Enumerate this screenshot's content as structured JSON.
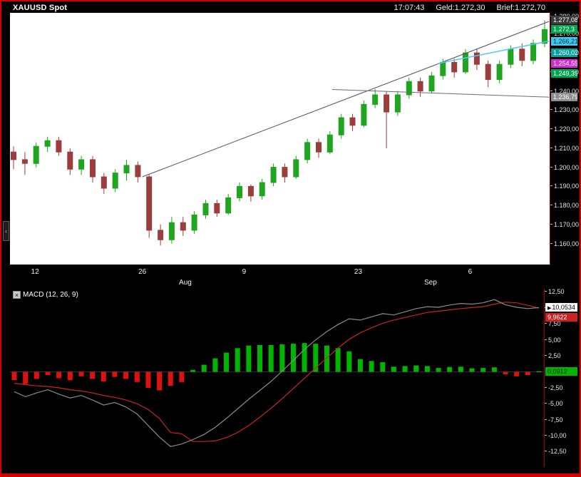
{
  "titlebar": {
    "symbol": "XAUUSD Spot",
    "time": "17:07:43",
    "bid": "Geld:1.272,30",
    "ask": "Brief:1.272,70"
  },
  "macd_panel": {
    "title": "MACD (12, 26, 9)",
    "close_label": "×"
  },
  "chart_data": [
    {
      "type": "candlestick",
      "symbol": "XAUUSD Spot",
      "y_range": [
        1149,
        1281
      ],
      "y_ticks": [
        {
          "v": 1280,
          "label": "1.280,00"
        },
        {
          "v": 1270,
          "label": "1.270,00"
        },
        {
          "v": 1260,
          "label": "1.260,00"
        },
        {
          "v": 1250,
          "label": "1.250,00"
        },
        {
          "v": 1240,
          "label": "1.240,00"
        },
        {
          "v": 1230,
          "label": "1.230,00"
        },
        {
          "v": 1220,
          "label": "1.220,00"
        },
        {
          "v": 1210,
          "label": "1.210,00"
        },
        {
          "v": 1200,
          "label": "1.200,00"
        },
        {
          "v": 1190,
          "label": "1.190,00"
        },
        {
          "v": 1180,
          "label": "1.180,00"
        },
        {
          "v": 1170,
          "label": "1.170,00"
        },
        {
          "v": 1160,
          "label": "1.160,00"
        }
      ],
      "x_ticks": [
        {
          "i": 1.9,
          "label": "12",
          "row": 0
        },
        {
          "i": 11.4,
          "label": "26",
          "row": 0
        },
        {
          "i": 15.2,
          "label": "Aug",
          "row": 1
        },
        {
          "i": 20.4,
          "label": "9",
          "row": 0
        },
        {
          "i": 30.5,
          "label": "23",
          "row": 0
        },
        {
          "i": 36.9,
          "label": "Sep",
          "row": 1
        },
        {
          "i": 40.4,
          "label": "6",
          "row": 0
        }
      ],
      "ohlc": [
        [
          1208,
          1211,
          1199,
          1204
        ],
        [
          1204,
          1208,
          1196,
          1202
        ],
        [
          1202,
          1213,
          1200,
          1211
        ],
        [
          1211,
          1216,
          1208,
          1214
        ],
        [
          1214,
          1216,
          1206,
          1208
        ],
        [
          1208,
          1210,
          1196,
          1199
        ],
        [
          1199,
          1206,
          1196,
          1204
        ],
        [
          1204,
          1206,
          1192,
          1195
        ],
        [
          1195,
          1197,
          1186,
          1189
        ],
        [
          1189,
          1199,
          1187,
          1197
        ],
        [
          1197,
          1204,
          1193,
          1201
        ],
        [
          1201,
          1203,
          1192,
          1195
        ],
        [
          1195,
          1196,
          1163,
          1167
        ],
        [
          1167,
          1170,
          1159,
          1162
        ],
        [
          1162,
          1174,
          1160,
          1171
        ],
        [
          1171,
          1174,
          1164,
          1167
        ],
        [
          1167,
          1177,
          1165,
          1175
        ],
        [
          1175,
          1183,
          1173,
          1181
        ],
        [
          1181,
          1183,
          1174,
          1176
        ],
        [
          1176,
          1186,
          1175,
          1184
        ],
        [
          1184,
          1192,
          1182,
          1190
        ],
        [
          1190,
          1191,
          1182,
          1185
        ],
        [
          1185,
          1194,
          1183,
          1192
        ],
        [
          1192,
          1202,
          1190,
          1200
        ],
        [
          1200,
          1202,
          1192,
          1195
        ],
        [
          1195,
          1206,
          1194,
          1204
        ],
        [
          1204,
          1215,
          1202,
          1213
        ],
        [
          1213,
          1215,
          1205,
          1208
        ],
        [
          1208,
          1219,
          1207,
          1217
        ],
        [
          1217,
          1228,
          1215,
          1226
        ],
        [
          1226,
          1228,
          1219,
          1222
        ],
        [
          1222,
          1235,
          1221,
          1233
        ],
        [
          1233,
          1241,
          1231,
          1238
        ],
        [
          1238,
          1240,
          1210,
          1229
        ],
        [
          1229,
          1240,
          1227,
          1238
        ],
        [
          1238,
          1247,
          1236,
          1245
        ],
        [
          1245,
          1247,
          1237,
          1240
        ],
        [
          1240,
          1250,
          1239,
          1248
        ],
        [
          1248,
          1257,
          1246,
          1255
        ],
        [
          1255,
          1257,
          1247,
          1250
        ],
        [
          1250,
          1262,
          1249,
          1260
        ],
        [
          1260,
          1262,
          1251,
          1254
        ],
        [
          1254,
          1256,
          1242,
          1246
        ],
        [
          1246,
          1256,
          1244,
          1254
        ],
        [
          1254,
          1264,
          1252,
          1262
        ],
        [
          1262,
          1265,
          1253,
          1256
        ],
        [
          1256,
          1267,
          1254,
          1265
        ],
        [
          1265,
          1277.08,
          1263,
          1272.3
        ]
      ],
      "up_color": "#1fa51f",
      "down_color": "#9b3d3d",
      "trend_lines": [
        {
          "i1": 11.4,
          "p1": 1195.0,
          "i2": 47.4,
          "p2": 1276.5,
          "color": "#4d4d5e",
          "width": 1
        },
        {
          "i1": 28.2,
          "p1": 1240.8,
          "i2": 47.4,
          "p2": 1236.79,
          "color": "#6a6a7a",
          "width": 1
        },
        {
          "i1": 37.6,
          "p1": 1254.5,
          "i2": 47.4,
          "p2": 1266.21,
          "color": "#54c8f0",
          "width": 1.5
        }
      ],
      "price_tags": [
        {
          "v": 1277.08,
          "label": "1.277,08",
          "bg": "#3a3a3a",
          "fg": "#ffffff"
        },
        {
          "v": 1272.3,
          "label": "1.272,3",
          "bg": "#00a550",
          "fg": "#ffffff"
        },
        {
          "v": 1266.21,
          "label": "1.266,21",
          "bg": "#43c6e8",
          "fg": "#00303f"
        },
        {
          "v": 1260.02,
          "label": "1.260,02",
          "bg": "#0e9e9e",
          "fg": "#ffffff"
        },
        {
          "v": 1254.559,
          "label": "1.254,559",
          "bg": "#d629d6",
          "fg": "#ffffff"
        },
        {
          "v": 1249.39,
          "label": "1.249,39",
          "bg": "#00a550",
          "fg": "#ffffff"
        },
        {
          "v": 1236.79,
          "label": "1.236,79",
          "bg": "#8f8f8f",
          "fg": "#ffffff"
        }
      ]
    },
    {
      "type": "macd",
      "title": "MACD (12, 26, 9)",
      "params": [
        12,
        26,
        9
      ],
      "y_range": [
        -14.9,
        13
      ],
      "y_ticks": [
        {
          "v": 12.5,
          "label": "12,50"
        },
        {
          "v": 10,
          "label": "10,00"
        },
        {
          "v": 7.5,
          "label": "7,50"
        },
        {
          "v": 5,
          "label": "5,00"
        },
        {
          "v": 2.5,
          "label": "2,50"
        },
        {
          "v": -2.5,
          "label": "-2,50"
        },
        {
          "v": -5,
          "label": "-5,00"
        },
        {
          "v": -7.5,
          "label": "-7,50"
        },
        {
          "v": -10,
          "label": "-10,00"
        },
        {
          "v": -12.5,
          "label": "-12,50"
        }
      ],
      "macd_line": [
        -3.1,
        -3.9,
        -3.3,
        -2.8,
        -3.5,
        -4.1,
        -3.7,
        -4.4,
        -5.2,
        -4.8,
        -5.5,
        -6.6,
        -8.4,
        -10.2,
        -11.7,
        -11.3,
        -10.6,
        -9.8,
        -8.7,
        -7.3,
        -5.8,
        -4.3,
        -2.9,
        -1.5,
        0.1,
        1.8,
        3.5,
        5.0,
        6.3,
        7.4,
        8.3,
        8.1,
        8.6,
        9.1,
        8.9,
        9.4,
        9.9,
        10.2,
        10.1,
        10.45,
        10.7,
        10.6,
        10.8,
        11.3,
        10.5,
        10.1,
        9.9,
        10.0534
      ],
      "signal_line": [
        -1.8,
        -2.0,
        -2.2,
        -2.3,
        -2.5,
        -2.8,
        -3.0,
        -3.3,
        -3.7,
        -4.0,
        -4.4,
        -5.0,
        -5.9,
        -7.3,
        -9.5,
        -9.7,
        -10.9,
        -10.9,
        -10.8,
        -10.3,
        -9.5,
        -8.4,
        -7.1,
        -5.7,
        -4.2,
        -2.6,
        -1.0,
        0.6,
        2.2,
        3.7,
        5.1,
        6.1,
        6.9,
        7.6,
        8.1,
        8.5,
        8.9,
        9.3,
        9.5,
        9.7,
        9.9,
        10.05,
        10.2,
        10.6,
        10.9,
        10.8,
        10.4,
        9.9622
      ],
      "histogram": [
        -1.3,
        -1.9,
        -1.1,
        -0.5,
        -1.0,
        -1.3,
        -0.7,
        -1.1,
        -1.5,
        -0.8,
        -1.1,
        -1.6,
        -2.5,
        -2.9,
        -2.2,
        -1.6,
        0.3,
        1.1,
        2.1,
        3.0,
        3.7,
        4.1,
        4.2,
        4.2,
        4.3,
        4.4,
        4.5,
        4.4,
        4.1,
        3.7,
        3.2,
        2.0,
        1.7,
        1.5,
        0.8,
        0.9,
        1.0,
        0.9,
        0.6,
        0.75,
        0.8,
        0.55,
        0.6,
        0.7,
        -0.4,
        -0.7,
        -0.5,
        0.0912
      ],
      "colors": {
        "macd_line": "#8a8a8a",
        "signal_line": "#cc2222",
        "hist_up": "#00b400",
        "hist_down": "#dd1111"
      },
      "value_tags": [
        {
          "v": 10.0534,
          "label": "10,0534",
          "bg": "#ffffff",
          "fg": "#000000",
          "arrow": true
        },
        {
          "v": 9.9622,
          "label": "9,9622",
          "bg": "#cc2222",
          "fg": "#ffffff",
          "dy": 13
        },
        {
          "v": 0.0912,
          "label": "0,0912",
          "bg": "#00b400",
          "fg": "#00240b"
        }
      ]
    }
  ]
}
